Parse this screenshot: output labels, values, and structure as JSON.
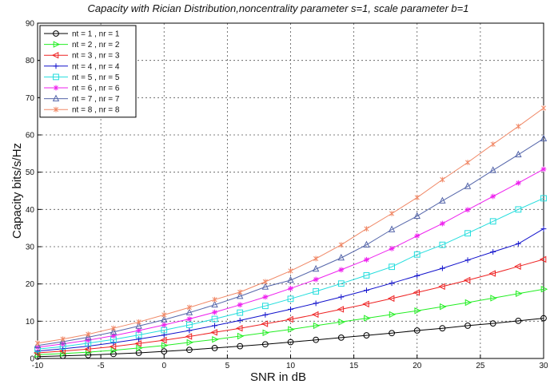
{
  "chart_data": {
    "type": "line",
    "title": "Capacity with Rician Distribution,noncentrality parameter s=1, scale parameter b=1",
    "xlabel": "SNR in dB",
    "ylabel": "Capacity bits/s/Hz",
    "xlim": [
      -10,
      30
    ],
    "ylim": [
      0,
      90
    ],
    "xticks": [
      -10,
      -5,
      0,
      5,
      10,
      15,
      20,
      25,
      30
    ],
    "yticks": [
      0,
      10,
      20,
      30,
      40,
      50,
      60,
      70,
      80,
      90
    ],
    "grid": true,
    "legend_position": "top-left",
    "x": [
      -10,
      -8,
      -6,
      -4,
      -2,
      0,
      2,
      4,
      6,
      8,
      10,
      12,
      14,
      16,
      18,
      20,
      22,
      24,
      26,
      28,
      30
    ],
    "series": [
      {
        "name": "nt = 1 , nr = 1",
        "color": "#000000",
        "marker": "circle",
        "values": [
          0.5,
          0.7,
          0.9,
          1.2,
          1.5,
          1.9,
          2.3,
          2.8,
          3.3,
          3.8,
          4.4,
          5.0,
          5.6,
          6.2,
          6.8,
          7.5,
          8.1,
          8.8,
          9.4,
          10.1,
          10.8
        ]
      },
      {
        "name": "nt = 2 , nr = 2",
        "color": "#22ee22",
        "marker": "triangle-right",
        "values": [
          1.0,
          1.3,
          1.7,
          2.2,
          2.8,
          3.5,
          4.3,
          5.1,
          6.0,
          6.9,
          7.8,
          8.8,
          9.8,
          10.8,
          11.8,
          12.8,
          13.9,
          15.0,
          16.2,
          17.4,
          18.6
        ]
      },
      {
        "name": "nt = 3 , nr = 3",
        "color": "#ee2222",
        "marker": "triangle-left",
        "values": [
          1.5,
          2.0,
          2.5,
          3.2,
          4.0,
          4.9,
          5.9,
          7.0,
          8.1,
          9.3,
          10.5,
          11.8,
          13.2,
          14.6,
          16.1,
          17.7,
          19.3,
          21.0,
          22.8,
          24.7,
          26.6
        ]
      },
      {
        "name": "nt = 4 , nr = 4",
        "color": "#1111cc",
        "marker": "plus",
        "values": [
          2.0,
          2.6,
          3.3,
          4.2,
          5.2,
          6.3,
          7.5,
          8.8,
          10.2,
          11.7,
          13.2,
          14.8,
          16.5,
          18.3,
          20.2,
          22.2,
          24.2,
          26.4,
          28.6,
          30.8,
          34.8
        ]
      },
      {
        "name": "nt = 5 , nr = 5",
        "color": "#22dddd",
        "marker": "square",
        "values": [
          2.5,
          3.2,
          4.1,
          5.1,
          6.3,
          7.6,
          9.0,
          10.6,
          12.3,
          14.1,
          16.0,
          18.0,
          20.1,
          22.3,
          24.6,
          27.9,
          30.5,
          33.6,
          36.8,
          40.0,
          43.0
        ]
      },
      {
        "name": "nt = 6 , nr = 6",
        "color": "#ee22ee",
        "marker": "star",
        "values": [
          3.0,
          3.9,
          4.9,
          6.1,
          7.5,
          9.0,
          10.6,
          12.4,
          14.4,
          16.5,
          18.8,
          21.2,
          23.8,
          26.5,
          29.5,
          32.9,
          36.2,
          39.9,
          43.5,
          47.1,
          50.8
        ]
      },
      {
        "name": "nt = 7 , nr = 7",
        "color": "#5566aa",
        "marker": "triangle-up",
        "values": [
          3.5,
          4.5,
          5.7,
          7.1,
          8.7,
          10.4,
          12.3,
          14.4,
          16.7,
          19.2,
          21.0,
          24.0,
          27.0,
          30.5,
          34.6,
          38.2,
          42.3,
          46.2,
          50.5,
          54.7,
          59.0
        ]
      },
      {
        "name": "nt = 8 , nr = 8",
        "color": "#f08866",
        "marker": "asterisk",
        "values": [
          4.1,
          5.2,
          6.5,
          8.1,
          9.8,
          11.7,
          13.7,
          15.8,
          17.8,
          20.6,
          23.5,
          26.8,
          30.5,
          34.8,
          38.9,
          43.2,
          48.0,
          52.6,
          57.5,
          62.3,
          67.2
        ]
      }
    ]
  }
}
